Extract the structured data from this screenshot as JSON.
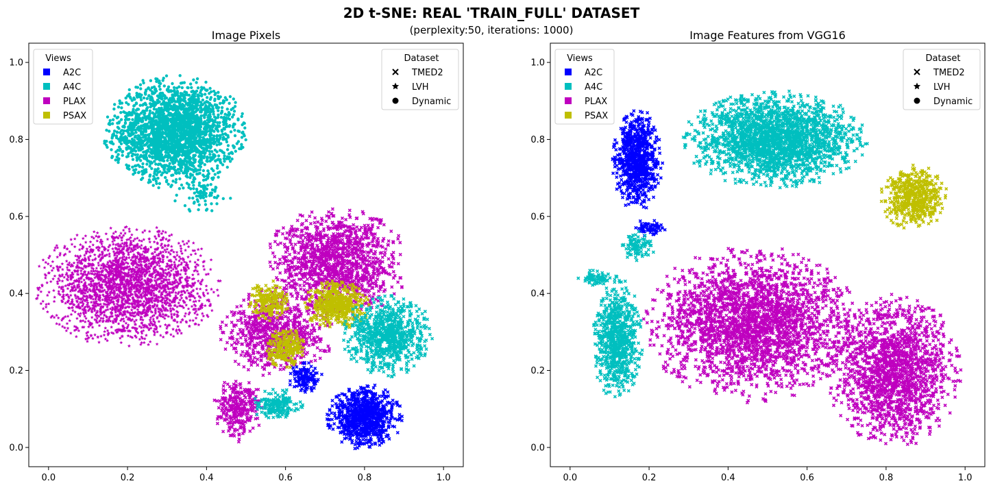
{
  "figure": {
    "title": "2D t-SNE: REAL 'TRAIN_FULL' DATASET",
    "subtitle": "(perplexity:50, iterations: 1000)"
  },
  "legend_views": {
    "title": "Views",
    "items": [
      {
        "label": "A2C",
        "color": "#0000ff"
      },
      {
        "label": "A4C",
        "color": "#00bfbf"
      },
      {
        "label": "PLAX",
        "color": "#bf00bf"
      },
      {
        "label": "PSAX",
        "color": "#bfbf00"
      }
    ]
  },
  "legend_dataset": {
    "title": "Dataset",
    "items": [
      {
        "label": "TMED2",
        "marker": "x"
      },
      {
        "label": "LVH",
        "marker": "star"
      },
      {
        "label": "Dynamic",
        "marker": "circle"
      }
    ]
  },
  "chart_data": [
    {
      "type": "scatter",
      "title": "Image Pixels",
      "xlim": [
        -0.05,
        1.05
      ],
      "ylim": [
        -0.05,
        1.05
      ],
      "xticks": [
        "0.0",
        "0.2",
        "0.4",
        "0.6",
        "0.8",
        "1.0"
      ],
      "yticks": [
        "0.0",
        "0.2",
        "0.4",
        "0.6",
        "0.8",
        "1.0"
      ],
      "clusters": [
        {
          "view": "A4C",
          "marker": "circle",
          "cx": 0.32,
          "cy": 0.82,
          "rx": 0.17,
          "ry": 0.14,
          "n": 2600
        },
        {
          "view": "A4C",
          "marker": "circle",
          "cx": 0.39,
          "cy": 0.66,
          "rx": 0.07,
          "ry": 0.05,
          "n": 80
        },
        {
          "view": "PLAX",
          "marker": "star",
          "cx": 0.2,
          "cy": 0.42,
          "rx": 0.22,
          "ry": 0.15,
          "n": 2800
        },
        {
          "view": "PLAX",
          "marker": "x",
          "cx": 0.73,
          "cy": 0.48,
          "rx": 0.17,
          "ry": 0.14,
          "n": 1400
        },
        {
          "view": "PLAX",
          "marker": "x",
          "cx": 0.58,
          "cy": 0.3,
          "rx": 0.14,
          "ry": 0.11,
          "n": 800
        },
        {
          "view": "PLAX",
          "marker": "x",
          "cx": 0.48,
          "cy": 0.1,
          "rx": 0.06,
          "ry": 0.08,
          "n": 300
        },
        {
          "view": "PSAX",
          "marker": "x",
          "cx": 0.73,
          "cy": 0.37,
          "rx": 0.08,
          "ry": 0.06,
          "n": 500
        },
        {
          "view": "PSAX",
          "marker": "x",
          "cx": 0.6,
          "cy": 0.26,
          "rx": 0.05,
          "ry": 0.05,
          "n": 250
        },
        {
          "view": "PSAX",
          "marker": "x",
          "cx": 0.56,
          "cy": 0.38,
          "rx": 0.05,
          "ry": 0.05,
          "n": 200
        },
        {
          "view": "A4C",
          "marker": "x",
          "cx": 0.86,
          "cy": 0.29,
          "rx": 0.11,
          "ry": 0.1,
          "n": 900
        },
        {
          "view": "A4C",
          "marker": "x",
          "cx": 0.58,
          "cy": 0.11,
          "rx": 0.06,
          "ry": 0.04,
          "n": 200
        },
        {
          "view": "A2C",
          "marker": "x",
          "cx": 0.8,
          "cy": 0.08,
          "rx": 0.09,
          "ry": 0.08,
          "n": 900
        },
        {
          "view": "A2C",
          "marker": "x",
          "cx": 0.65,
          "cy": 0.18,
          "rx": 0.04,
          "ry": 0.04,
          "n": 150
        }
      ]
    },
    {
      "type": "scatter",
      "title": "Image Features from VGG16",
      "xlim": [
        -0.05,
        1.05
      ],
      "ylim": [
        -0.05,
        1.05
      ],
      "xticks": [
        "0.0",
        "0.2",
        "0.4",
        "0.6",
        "0.8",
        "1.0"
      ],
      "yticks": [
        "0.0",
        "0.2",
        "0.4",
        "0.6",
        "0.8",
        "1.0"
      ],
      "clusters": [
        {
          "view": "A2C",
          "marker": "x",
          "cx": 0.17,
          "cy": 0.75,
          "rx": 0.06,
          "ry": 0.13,
          "n": 900
        },
        {
          "view": "A2C",
          "marker": "x",
          "cx": 0.2,
          "cy": 0.57,
          "rx": 0.04,
          "ry": 0.02,
          "n": 80
        },
        {
          "view": "A4C",
          "marker": "x",
          "cx": 0.17,
          "cy": 0.52,
          "rx": 0.04,
          "ry": 0.04,
          "n": 100
        },
        {
          "view": "A4C",
          "marker": "x",
          "cx": 0.52,
          "cy": 0.8,
          "rx": 0.22,
          "ry": 0.12,
          "n": 2400
        },
        {
          "view": "A4C",
          "marker": "x",
          "cx": 0.12,
          "cy": 0.28,
          "rx": 0.06,
          "ry": 0.15,
          "n": 800
        },
        {
          "view": "A4C",
          "marker": "x",
          "cx": 0.07,
          "cy": 0.44,
          "rx": 0.05,
          "ry": 0.02,
          "n": 80
        },
        {
          "view": "PSAX",
          "marker": "x",
          "cx": 0.87,
          "cy": 0.65,
          "rx": 0.08,
          "ry": 0.08,
          "n": 600
        },
        {
          "view": "PLAX",
          "marker": "x",
          "cx": 0.46,
          "cy": 0.32,
          "rx": 0.26,
          "ry": 0.19,
          "n": 2800
        },
        {
          "view": "PLAX",
          "marker": "x",
          "cx": 0.82,
          "cy": 0.2,
          "rx": 0.16,
          "ry": 0.19,
          "n": 1800
        }
      ]
    }
  ]
}
